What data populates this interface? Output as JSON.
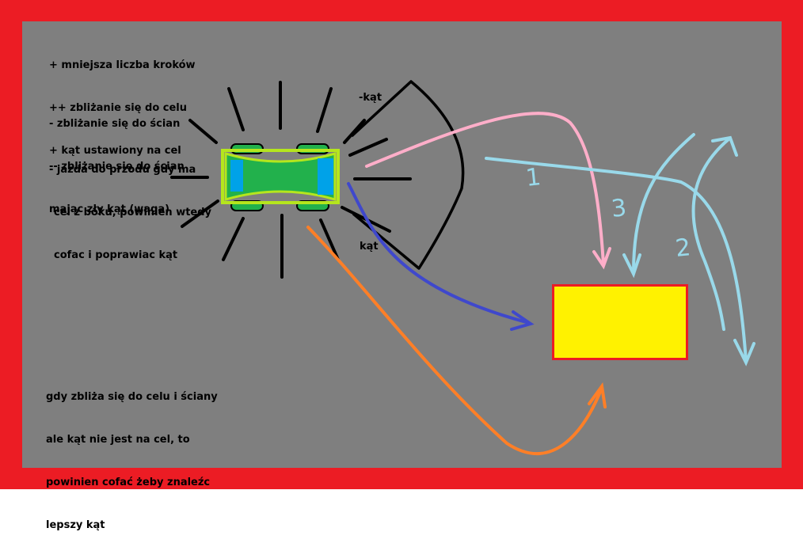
{
  "notes": {
    "rewards": [
      "+ mniejsza liczba kroków",
      "++ zbliżanie się do celu",
      "+ kąt ustawiony na cel"
    ],
    "penalties": [
      "- zbliżanie się do ścian",
      "-- zbliżanie się do ścian",
      "mając zły kąt (waga)"
    ],
    "forward_rule": [
      "- jazda do przodu gdy ma",
      "cel z boku, powinien wtedy",
      "cofac i poprawiac kąt"
    ],
    "bottom_rule": [
      "gdy zbliża się do celu i ściany",
      "ale kąt nie jest na cel, to",
      "powinien cofać żeby znaleźc",
      "lepszy kąt"
    ]
  },
  "angle_labels": {
    "negative": "-kąt",
    "positive": "kąt"
  },
  "path_labels": [
    "1",
    "2",
    "3"
  ],
  "colors": {
    "frame": "#ec1c24",
    "background": "#7f7f7f",
    "target_fill": "#fff200",
    "target_border": "#ec1c24",
    "car_body": "#22b14c",
    "car_outline": "#b5e61d",
    "car_window": "#00a2e8",
    "pink_arrow": "#ffaec9",
    "blue_arrow": "#3f48cc",
    "orange_arrow": "#ff7f27",
    "light_blue_arrows": "#99d9ea"
  }
}
